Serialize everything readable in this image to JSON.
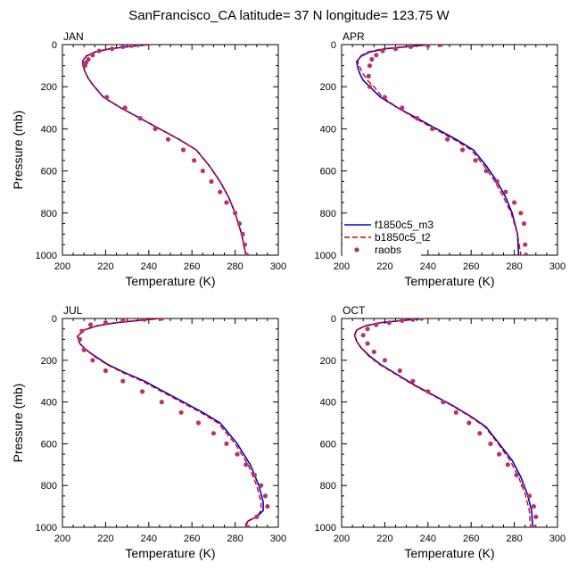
{
  "title": "SanFrancisco_CA  latitude= 37 N longitude= 123.75 W",
  "colors": {
    "series_1": "#0000cc",
    "series_2": "#dd0000",
    "series_3": "#b8336a"
  },
  "legend": [
    "f1850c5_m3",
    "b1850c5_t2",
    "raobs"
  ],
  "chart_data": [
    {
      "type": "line",
      "title": "JAN",
      "xlabel": "Temperature (K)",
      "ylabel": "Pressure (mb)",
      "xlim": [
        200,
        300
      ],
      "ylim": [
        1000,
        0
      ],
      "x_ticks": [
        200,
        220,
        240,
        260,
        280,
        300
      ],
      "y_ticks": [
        0,
        200,
        400,
        600,
        800,
        1000
      ],
      "series": [
        {
          "name": "f1850c5_m3",
          "style": "solid",
          "x": [
            240,
            230,
            222,
            215,
            211,
            209.5,
            209.5,
            210.5,
            212,
            214,
            219,
            227,
            236,
            245,
            254,
            262,
            268,
            273,
            277,
            280,
            283,
            285
          ],
          "y": [
            0,
            10,
            20,
            35,
            55,
            75,
            100,
            130,
            160,
            190,
            250,
            300,
            350,
            400,
            450,
            500,
            575,
            650,
            725,
            800,
            900,
            1000
          ]
        },
        {
          "name": "b1850c5_t2",
          "style": "dashed",
          "x": [
            240,
            230,
            222,
            215,
            211,
            209.5,
            209.5,
            210.5,
            212,
            214,
            219,
            227,
            236,
            245,
            254,
            262,
            268,
            273,
            277,
            280,
            283,
            285
          ],
          "y": [
            0,
            10,
            20,
            35,
            55,
            75,
            100,
            130,
            160,
            190,
            250,
            300,
            350,
            400,
            450,
            500,
            575,
            650,
            725,
            800,
            900,
            1000
          ]
        },
        {
          "name": "raobs",
          "style": "markers",
          "x": [
            235,
            232,
            228,
            223,
            217,
            214,
            212,
            211,
            210.5,
            220.5,
            229,
            236,
            243,
            249,
            256,
            261,
            265,
            269,
            273,
            276,
            280,
            282,
            283.5,
            284.5,
            285.5
          ],
          "y": [
            0,
            5,
            10,
            20,
            30,
            50,
            70,
            85,
            100,
            250,
            300,
            350,
            400,
            450,
            500,
            550,
            600,
            650,
            700,
            750,
            800,
            850,
            900,
            950,
            1000
          ]
        }
      ]
    },
    {
      "type": "line",
      "title": "APR",
      "xlabel": "Temperature (K)",
      "ylabel": "",
      "xlim": [
        200,
        300
      ],
      "ylim": [
        1000,
        0
      ],
      "x_ticks": [
        200,
        220,
        240,
        260,
        280,
        300
      ],
      "y_ticks": [
        0,
        200,
        400,
        600,
        800,
        1000
      ],
      "series": [
        {
          "name": "f1850c5_m3",
          "style": "solid",
          "x": [
            241,
            230,
            220,
            213,
            209,
            207,
            207.5,
            208.5,
            210,
            213,
            218,
            226,
            235,
            244,
            253,
            261,
            267,
            272,
            276,
            279,
            281.5,
            282
          ],
          "y": [
            0,
            10,
            20,
            35,
            55,
            80,
            110,
            140,
            170,
            200,
            250,
            300,
            350,
            400,
            450,
            500,
            575,
            650,
            725,
            800,
            900,
            1000
          ]
        },
        {
          "name": "b1850c5_t2",
          "style": "dashed",
          "x": [
            240,
            229,
            219,
            212,
            208.5,
            207.5,
            208.5,
            210,
            212,
            215,
            219,
            226,
            234,
            243,
            252,
            260,
            266,
            271,
            275,
            278.5,
            281.5,
            283
          ],
          "y": [
            0,
            10,
            20,
            35,
            55,
            80,
            110,
            140,
            170,
            200,
            250,
            300,
            350,
            400,
            450,
            500,
            575,
            650,
            725,
            800,
            900,
            1000
          ]
        },
        {
          "name": "raobs",
          "style": "markers",
          "x": [
            246,
            240,
            232,
            225,
            219,
            216,
            214,
            213,
            212.5,
            213,
            220,
            228,
            235,
            242,
            249,
            256,
            262,
            267,
            272,
            276,
            280,
            283,
            284.5,
            285,
            285.5
          ],
          "y": [
            0,
            5,
            10,
            20,
            30,
            50,
            70,
            100,
            150,
            200,
            250,
            300,
            350,
            400,
            450,
            500,
            550,
            600,
            650,
            700,
            750,
            800,
            850,
            950,
            1000
          ]
        }
      ]
    },
    {
      "type": "line",
      "title": "JUL",
      "xlabel": "Temperature (K)",
      "ylabel": "Pressure (mb)",
      "xlim": [
        200,
        300
      ],
      "ylim": [
        1000,
        0
      ],
      "x_ticks": [
        200,
        220,
        240,
        260,
        280,
        300
      ],
      "y_ticks": [
        0,
        200,
        400,
        600,
        800,
        1000
      ],
      "series": [
        {
          "name": "f1850c5_m3",
          "style": "solid",
          "x": [
            245,
            235,
            225,
            216,
            210,
            207,
            208,
            211,
            215,
            221,
            229,
            238,
            247,
            256,
            265,
            273,
            281,
            287,
            291,
            293,
            293,
            290,
            286,
            285
          ],
          "y": [
            0,
            10,
            20,
            35,
            55,
            85,
            120,
            150,
            180,
            220,
            260,
            300,
            350,
            400,
            450,
            500,
            600,
            700,
            800,
            880,
            920,
            950,
            970,
            990
          ]
        },
        {
          "name": "b1850c5_t2",
          "style": "dashed",
          "x": [
            245,
            235,
            225,
            216,
            210,
            207,
            208,
            211,
            214.5,
            220.5,
            228,
            237,
            246,
            255,
            264,
            272,
            280,
            286,
            290,
            292,
            292,
            290,
            286,
            284.5
          ],
          "y": [
            0,
            10,
            20,
            35,
            55,
            85,
            120,
            150,
            180,
            220,
            260,
            300,
            350,
            400,
            450,
            500,
            600,
            700,
            800,
            880,
            920,
            950,
            970,
            990
          ]
        },
        {
          "name": "raobs",
          "style": "markers",
          "x": [
            246,
            238,
            228,
            220,
            213,
            209,
            208,
            210,
            214,
            220,
            228,
            237,
            246,
            255,
            263,
            270,
            276,
            281,
            285,
            289,
            292,
            294,
            295,
            290,
            286
          ],
          "y": [
            0,
            5,
            10,
            20,
            30,
            60,
            100,
            150,
            200,
            250,
            300,
            350,
            400,
            450,
            500,
            550,
            600,
            650,
            700,
            750,
            800,
            850,
            900,
            950,
            1000
          ]
        }
      ]
    },
    {
      "type": "line",
      "title": "OCT",
      "xlabel": "Temperature (K)",
      "ylabel": "",
      "xlim": [
        200,
        300
      ],
      "ylim": [
        1000,
        0
      ],
      "x_ticks": [
        200,
        220,
        240,
        260,
        280,
        300
      ],
      "y_ticks": [
        0,
        200,
        400,
        600,
        800,
        1000
      ],
      "series": [
        {
          "name": "f1850c5_m3",
          "style": "solid",
          "x": [
            238,
            228,
            218,
            211,
            207,
            206,
            207,
            209,
            213,
            218,
            226,
            234,
            243,
            252,
            260,
            267,
            273,
            279,
            283,
            286,
            288,
            288.5
          ],
          "y": [
            0,
            10,
            20,
            35,
            55,
            80,
            110,
            140,
            180,
            220,
            270,
            320,
            370,
            420,
            470,
            520,
            600,
            680,
            760,
            840,
            920,
            1000
          ]
        },
        {
          "name": "b1850c5_t2",
          "style": "dashed",
          "x": [
            238,
            228,
            218,
            211,
            207,
            206,
            207,
            209,
            212.5,
            217.5,
            225.5,
            233.5,
            242.5,
            251.5,
            259.5,
            266.5,
            272.5,
            278,
            282,
            285,
            287,
            287.5
          ],
          "y": [
            0,
            10,
            20,
            35,
            55,
            80,
            110,
            140,
            180,
            220,
            270,
            320,
            370,
            420,
            470,
            520,
            600,
            680,
            760,
            840,
            920,
            1000
          ]
        },
        {
          "name": "raobs",
          "style": "markers",
          "x": [
            237,
            233,
            228,
            222,
            216,
            212,
            210,
            212,
            215,
            220,
            227,
            233,
            240,
            247,
            253,
            259,
            264,
            269,
            273,
            277,
            281,
            284,
            287,
            289,
            290,
            289
          ],
          "y": [
            0,
            5,
            10,
            20,
            30,
            50,
            80,
            120,
            160,
            200,
            250,
            300,
            350,
            400,
            450,
            500,
            550,
            600,
            650,
            700,
            750,
            800,
            850,
            900,
            950,
            1000
          ]
        }
      ]
    }
  ]
}
